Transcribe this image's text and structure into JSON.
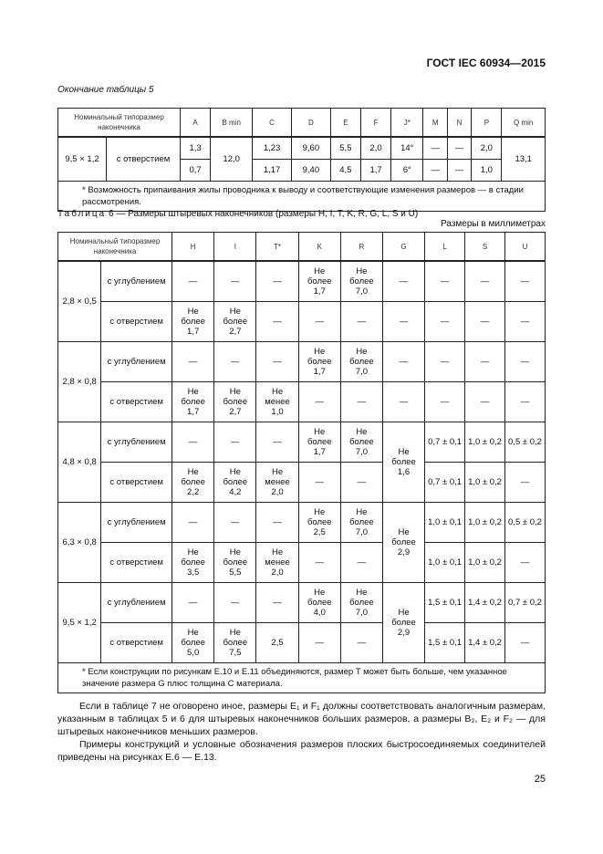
{
  "header": {
    "standard": "ГОСТ IEC 60934—2015"
  },
  "table5": {
    "caption": "Окончание таблицы 5",
    "headers": [
      "Номинальный типоразмер наконечника",
      "A",
      "B min",
      "C",
      "D",
      "E",
      "F",
      "J*",
      "M",
      "N",
      "P",
      "Q min"
    ],
    "size": "9,5 × 1,2",
    "type": "с отверстием",
    "upper": {
      "A": "1,3",
      "C": "1,23",
      "D": "9,60",
      "E": "5,5",
      "F": "2,0",
      "J": "14°",
      "M": "—",
      "N": "—",
      "P": "2,0"
    },
    "lower": {
      "A": "0,7",
      "C": "1,17",
      "D": "9,40",
      "E": "4,5",
      "F": "1,7",
      "J": "6°",
      "M": "—",
      "N": "—",
      "P": "1,0"
    },
    "B": "12,0",
    "Q": "13,1",
    "footnote": "* Возможность припаивания жилы проводника к выводу и соответствующие изменения размеров — в стадии рассмотрения."
  },
  "table6": {
    "caption_prefix": "Таблица",
    "caption": "6 — Размеры штыревых наконечников (размеры H, I, T, K, R, G, L, S и U)",
    "units": "Размеры в миллиметрах",
    "headers": [
      "Номинальный типоразмер наконечника",
      "H",
      "I",
      "T*",
      "K",
      "R",
      "G",
      "L",
      "S",
      "U"
    ],
    "groups": [
      {
        "size": "2,8 × 0,5",
        "G": null,
        "rows": [
          {
            "type": "с углублением",
            "cells": [
              "—",
              "—",
              "—",
              "Не\nболее\n1,7",
              "Не\nболее\n7,0",
              "—",
              "—",
              "—",
              "—"
            ]
          },
          {
            "type": "с отверстием",
            "cells": [
              "Не\nболее\n1,7",
              "Не\nболее\n2,7",
              "—",
              "—",
              "—",
              "—",
              "—",
              "—",
              "—"
            ]
          }
        ]
      },
      {
        "size": "2,8 × 0,8",
        "G": null,
        "rows": [
          {
            "type": "с углублением",
            "cells": [
              "—",
              "—",
              "—",
              "Не\nболее\n1,7",
              "Не\nболее\n7,0",
              "—",
              "—",
              "—",
              "—"
            ]
          },
          {
            "type": "с отверстием",
            "cells": [
              "Не\nболее\n1,7",
              "Не\nболее\n2,7",
              "Не\nменее\n1,0",
              "—",
              "—",
              "—",
              "—",
              "—",
              "—"
            ]
          }
        ]
      },
      {
        "size": "4,8 × 0,8",
        "G": "Не\nболее\n1,6",
        "rows": [
          {
            "type": "с углублением",
            "cells": [
              "—",
              "—",
              "—",
              "Не\nболее\n1,7",
              "Не\nболее\n7,0",
              null,
              "0,7 ± 0,1",
              "1,0 ± 0,2",
              "0,5 ± 0,2"
            ]
          },
          {
            "type": "с отверстием",
            "cells": [
              "Не\nболее\n2,2",
              "Не\nболее\n4,2",
              "Не\nменее\n2,0",
              "—",
              "—",
              null,
              "0,7 ± 0,1",
              "1,0 ± 0,2",
              "—"
            ]
          }
        ]
      },
      {
        "size": "6,3 × 0,8",
        "G": "Не\nболее\n2,9",
        "rows": [
          {
            "type": "с углублением",
            "cells": [
              "—",
              "—",
              "—",
              "Не\nболее\n2,5",
              "Не\nболее\n7,0",
              null,
              "1,0 ± 0,1",
              "1,0 ± 0,2",
              "0,5 ± 0,2"
            ]
          },
          {
            "type": "с отверстием",
            "cells": [
              "Не\nболее\n3,5",
              "Не\nболее\n5,5",
              "Не\nменее\n2,0",
              "—",
              "—",
              null,
              "1,0 ± 0,1",
              "1,0 ± 0,2",
              "—"
            ]
          }
        ]
      },
      {
        "size": "9,5 × 1,2",
        "G": "Не\nболее\n2,9",
        "rows": [
          {
            "type": "с углублением",
            "cells": [
              "—",
              "—",
              "—",
              "Не\nболее\n4,0",
              "Не\nболее\n7,0",
              null,
              "1,5 ± 0,1",
              "1,4 ± 0,2",
              "0,7 ± 0,2"
            ]
          },
          {
            "type": "с отверстием",
            "cells": [
              "Не\nболее\n5,0",
              "Не\nболее\n7,5",
              "2,5",
              "—",
              "—",
              null,
              "1,5 ± 0,1",
              "1,4 ± 0,2",
              "—"
            ]
          }
        ]
      }
    ],
    "footnote": "* Если конструкции по рисункам Е.10 и Е.11 объединяются, размер T может быть больше, чем указанное значение размера G плюс толщина C материала."
  },
  "body": {
    "paragraph1": "Если в таблице 7 не оговорено иное, размеры E₁ и F₁ должны соответствовать аналогичным размерам, указанным в таблицах 5 и 6 для штыревых наконечников больших размеров, а размеры B₂, E₂ и F₂ — для штыревых наконечников меньших размеров.",
    "paragraph2": "Примеры конструкций и условные обозначения размеров плоских быстросоединяемых соединителей приведены на рисунках Е.6 — Е.13."
  },
  "page_number": "25"
}
